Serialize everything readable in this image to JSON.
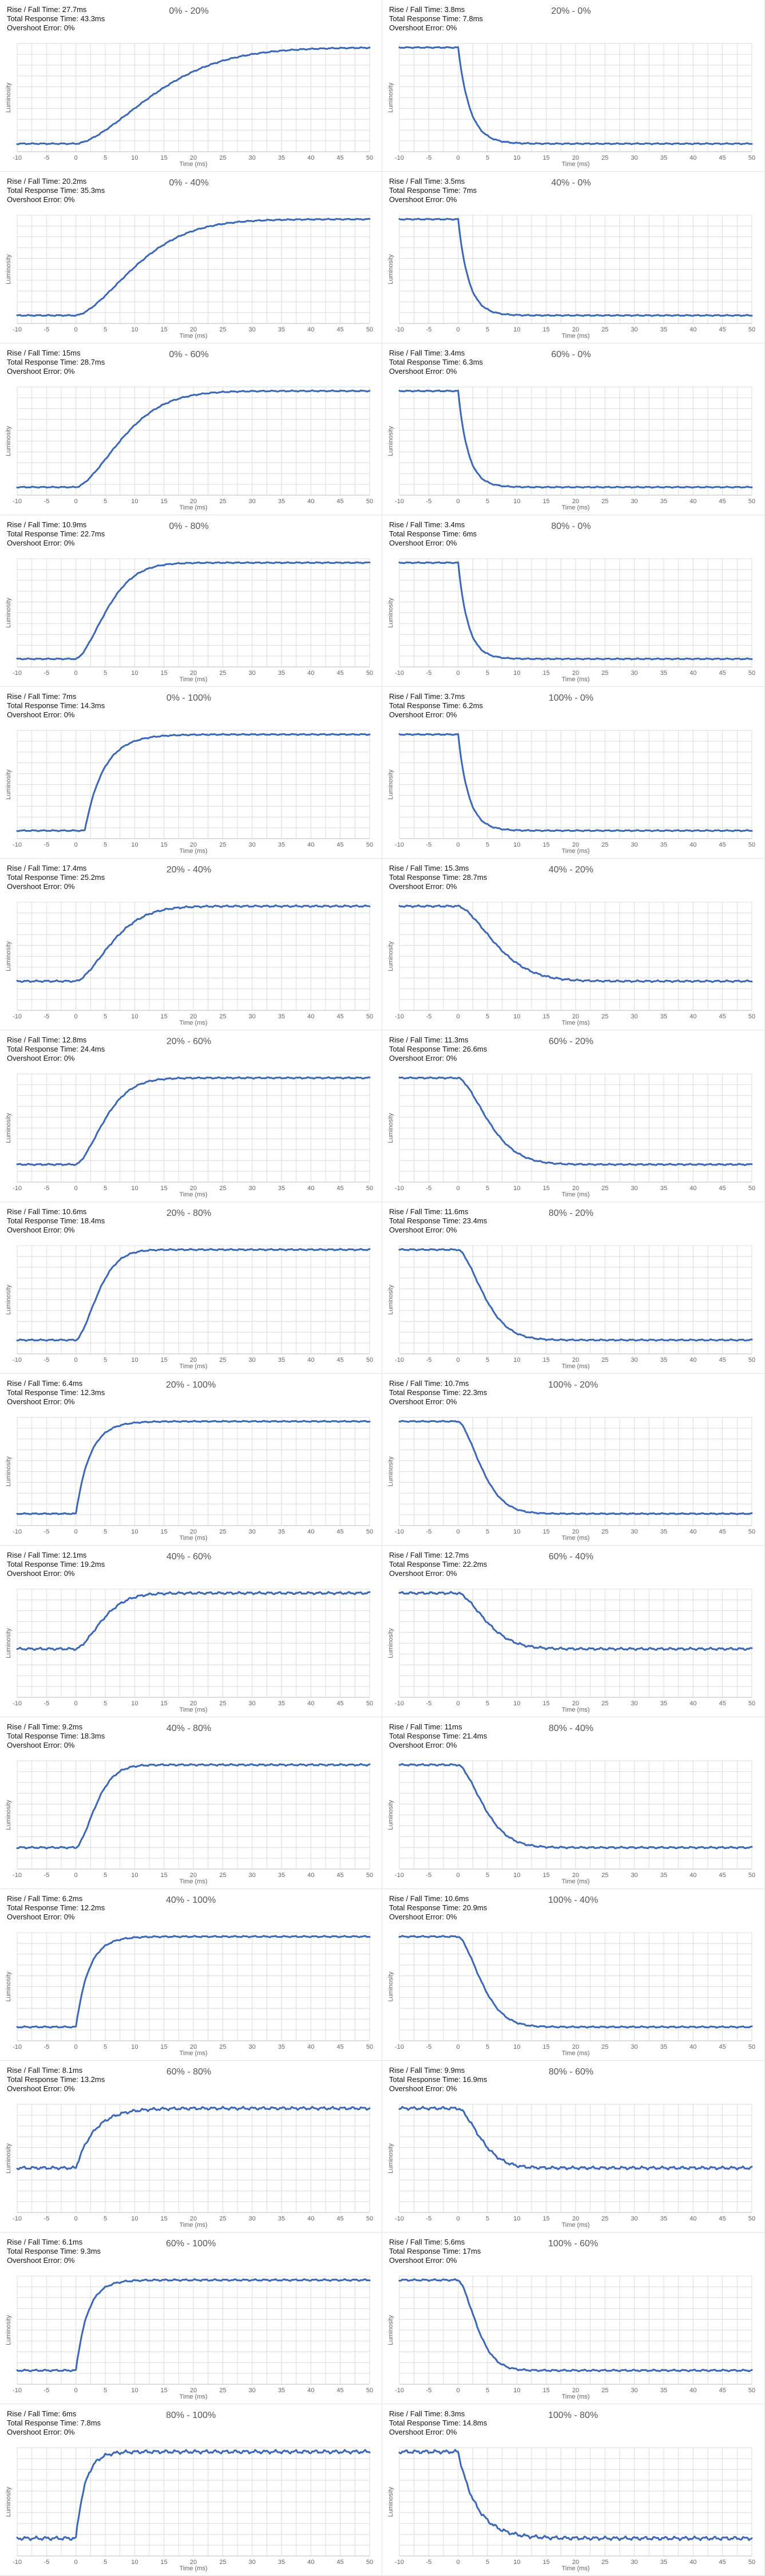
{
  "series_color": "#3a67b7",
  "chart_data": [
    {
      "type": "line",
      "title": "0% - 20%",
      "rise_fall": "Rise / Fall Time: 27.7ms",
      "total": "Total Response Time: 43.3ms",
      "overshoot": "Overshoot Error: 0%",
      "direction": "rise",
      "start": 0,
      "t0": 0,
      "tau": 16.3,
      "noise": 0.004,
      "xlabel": "Time (ms)",
      "ylabel": "Luminosity",
      "xlim": [
        -10,
        50
      ],
      "xticks": [
        -10,
        -5,
        0,
        5,
        10,
        15,
        20,
        25,
        30,
        35,
        40,
        45,
        50
      ],
      "ylim": [
        0,
        1
      ],
      "grid": true
    },
    {
      "type": "line",
      "title": "20% - 0%",
      "rise_fall": "Rise / Fall Time: 3.8ms",
      "total": "Total Response Time: 7.8ms",
      "overshoot": "Overshoot Error: 0%",
      "direction": "fall",
      "start": 0,
      "t0": 0,
      "tau": 2.0,
      "noise": 0.004,
      "xlabel": "Time (ms)",
      "ylabel": "Luminosity",
      "xlim": [
        -10,
        50
      ],
      "xticks": [
        -10,
        -5,
        0,
        5,
        10,
        15,
        20,
        25,
        30,
        35,
        40,
        45,
        50
      ],
      "ylim": [
        0,
        1
      ],
      "grid": true
    },
    {
      "type": "line",
      "title": "0% - 40%",
      "rise_fall": "Rise / Fall Time: 20.2ms",
      "total": "Total Response Time: 35.3ms",
      "overshoot": "Overshoot Error: 0%",
      "direction": "rise",
      "start": 0,
      "t0": 0,
      "tau": 12.5,
      "noise": 0.004,
      "xlabel": "Time (ms)",
      "ylabel": "Luminosity",
      "xlim": [
        -10,
        50
      ],
      "xticks": [
        -10,
        -5,
        0,
        5,
        10,
        15,
        20,
        25,
        30,
        35,
        40,
        45,
        50
      ],
      "ylim": [
        0,
        1
      ],
      "grid": true
    },
    {
      "type": "line",
      "title": "40% - 0%",
      "rise_fall": "Rise / Fall Time: 3.5ms",
      "total": "Total Response Time: 7ms",
      "overshoot": "Overshoot Error: 0%",
      "direction": "fall",
      "start": 0,
      "t0": 0,
      "tau": 1.8,
      "noise": 0.004,
      "xlabel": "Time (ms)",
      "ylabel": "Luminosity",
      "xlim": [
        -10,
        50
      ],
      "xticks": [
        -10,
        -5,
        0,
        5,
        10,
        15,
        20,
        25,
        30,
        35,
        40,
        45,
        50
      ],
      "ylim": [
        0,
        1
      ],
      "grid": true
    },
    {
      "type": "line",
      "title": "0% - 60%",
      "rise_fall": "Rise / Fall Time: 15ms",
      "total": "Total Response Time: 28.7ms",
      "overshoot": "Overshoot Error: 0%",
      "direction": "rise",
      "start": 0,
      "t0": 0,
      "tau": 9.8,
      "noise": 0.004,
      "xlabel": "Time (ms)",
      "ylabel": "Luminosity",
      "xlim": [
        -10,
        50
      ],
      "xticks": [
        -10,
        -5,
        0,
        5,
        10,
        15,
        20,
        25,
        30,
        35,
        40,
        45,
        50
      ],
      "ylim": [
        0,
        1
      ],
      "grid": true
    },
    {
      "type": "line",
      "title": "60% - 0%",
      "rise_fall": "Rise / Fall Time: 3.4ms",
      "total": "Total Response Time: 6.3ms",
      "overshoot": "Overshoot Error: 0%",
      "direction": "fall",
      "start": 0,
      "t0": 0,
      "tau": 1.7,
      "noise": 0.004,
      "xlabel": "Time (ms)",
      "ylabel": "Luminosity",
      "xlim": [
        -10,
        50
      ],
      "xticks": [
        -10,
        -5,
        0,
        5,
        10,
        15,
        20,
        25,
        30,
        35,
        40,
        45,
        50
      ],
      "ylim": [
        0,
        1
      ],
      "grid": true
    },
    {
      "type": "line",
      "title": "0% - 80%",
      "rise_fall": "Rise / Fall Time: 10.9ms",
      "total": "Total Response Time: 22.7ms",
      "overshoot": "Overshoot Error: 0%",
      "direction": "rise",
      "start": 0,
      "t0": 0,
      "tau": 6.5,
      "noise": 0.004,
      "xlabel": "Time (ms)",
      "ylabel": "Luminosity",
      "xlim": [
        -10,
        50
      ],
      "xticks": [
        -10,
        -5,
        0,
        5,
        10,
        15,
        20,
        25,
        30,
        35,
        40,
        45,
        50
      ],
      "ylim": [
        0,
        1
      ],
      "grid": true
    },
    {
      "type": "line",
      "title": "80% - 0%",
      "rise_fall": "Rise / Fall Time: 3.4ms",
      "total": "Total Response Time: 6ms",
      "overshoot": "Overshoot Error: 0%",
      "direction": "fall",
      "start": 0,
      "t0": 0,
      "tau": 1.7,
      "noise": 0.004,
      "xlabel": "Time (ms)",
      "ylabel": "Luminosity",
      "xlim": [
        -10,
        50
      ],
      "xticks": [
        -10,
        -5,
        0,
        5,
        10,
        15,
        20,
        25,
        30,
        35,
        40,
        45,
        50
      ],
      "ylim": [
        0,
        1
      ],
      "grid": true
    },
    {
      "type": "line",
      "title": "0% - 100%",
      "rise_fall": "Rise / Fall Time: 7ms",
      "total": "Total Response Time: 14.3ms",
      "overshoot": "Overshoot Error: 0%",
      "direction": "rise",
      "start": 0,
      "t0": 1.5,
      "tau": 3.2,
      "noise": 0.004,
      "xlabel": "Time (ms)",
      "ylabel": "Luminosity",
      "xlim": [
        -10,
        50
      ],
      "xticks": [
        -10,
        -5,
        0,
        5,
        10,
        15,
        20,
        25,
        30,
        35,
        40,
        45,
        50
      ],
      "ylim": [
        0,
        1
      ],
      "grid": true
    },
    {
      "type": "line",
      "title": "100% - 0%",
      "rise_fall": "Rise / Fall Time: 3.7ms",
      "total": "Total Response Time: 6.2ms",
      "overshoot": "Overshoot Error: 0%",
      "direction": "fall",
      "start": 0,
      "t0": 0,
      "tau": 1.8,
      "noise": 0.004,
      "xlabel": "Time (ms)",
      "ylabel": "Luminosity",
      "xlim": [
        -10,
        50
      ],
      "xticks": [
        -10,
        -5,
        0,
        5,
        10,
        15,
        20,
        25,
        30,
        35,
        40,
        45,
        50
      ],
      "ylim": [
        0,
        1
      ],
      "grid": true
    },
    {
      "type": "line",
      "title": "20% - 40%",
      "rise_fall": "Rise / Fall Time: 17.4ms",
      "total": "Total Response Time: 25.2ms",
      "overshoot": "Overshoot Error: 0%",
      "direction": "rise",
      "start": 0.22,
      "t0": 0,
      "tau": 7.5,
      "noise": 0.006,
      "xlabel": "Time (ms)",
      "ylabel": "Luminosity",
      "xlim": [
        -10,
        50
      ],
      "xticks": [
        -10,
        -5,
        0,
        5,
        10,
        15,
        20,
        25,
        30,
        35,
        40,
        45,
        50
      ],
      "ylim": [
        0,
        1
      ],
      "grid": true
    },
    {
      "type": "line",
      "title": "40% - 20%",
      "rise_fall": "Rise / Fall Time: 15.3ms",
      "total": "Total Response Time: 28.7ms",
      "overshoot": "Overshoot Error: 0%",
      "direction": "fall",
      "start": 0.22,
      "t0": 0,
      "tau": 8.0,
      "noise": 0.006,
      "xlabel": "Time (ms)",
      "ylabel": "Luminosity",
      "xlim": [
        -10,
        50
      ],
      "xticks": [
        -10,
        -5,
        0,
        5,
        10,
        15,
        20,
        25,
        30,
        35,
        40,
        45,
        50
      ],
      "ylim": [
        0,
        1
      ],
      "grid": true
    },
    {
      "type": "line",
      "title": "20% - 60%",
      "rise_fall": "Rise / Fall Time: 12.8ms",
      "total": "Total Response Time: 24.4ms",
      "overshoot": "Overshoot Error: 0%",
      "direction": "rise",
      "start": 0.1,
      "t0": 0,
      "tau": 6.0,
      "noise": 0.005,
      "xlabel": "Time (ms)",
      "ylabel": "Luminosity",
      "xlim": [
        -10,
        50
      ],
      "xticks": [
        -10,
        -5,
        0,
        5,
        10,
        15,
        20,
        25,
        30,
        35,
        40,
        45,
        50
      ],
      "ylim": [
        0,
        1
      ],
      "grid": true
    },
    {
      "type": "line",
      "title": "60% - 20%",
      "rise_fall": "Rise / Fall Time: 11.3ms",
      "total": "Total Response Time: 26.6ms",
      "overshoot": "Overshoot Error: 0%",
      "direction": "fall",
      "start": 0.1,
      "t0": 0,
      "tau": 6.5,
      "noise": 0.005,
      "xlabel": "Time (ms)",
      "ylabel": "Luminosity",
      "xlim": [
        -10,
        50
      ],
      "xticks": [
        -10,
        -5,
        0,
        5,
        10,
        15,
        20,
        25,
        30,
        35,
        40,
        45,
        50
      ],
      "ylim": [
        0,
        1
      ],
      "grid": true
    },
    {
      "type": "line",
      "title": "20% - 80%",
      "rise_fall": "Rise / Fall Time: 10.6ms",
      "total": "Total Response Time: 18.4ms",
      "overshoot": "Overshoot Error: 0%",
      "direction": "rise",
      "start": 0.06,
      "t0": 0,
      "tau": 4.6,
      "noise": 0.005,
      "xlabel": "Time (ms)",
      "ylabel": "Luminosity",
      "xlim": [
        -10,
        50
      ],
      "xticks": [
        -10,
        -5,
        0,
        5,
        10,
        15,
        20,
        25,
        30,
        35,
        40,
        45,
        50
      ],
      "ylim": [
        0,
        1
      ],
      "grid": true
    },
    {
      "type": "line",
      "title": "80% - 20%",
      "rise_fall": "Rise / Fall Time: 11.6ms",
      "total": "Total Response Time: 23.4ms",
      "overshoot": "Overshoot Error: 0%",
      "direction": "fall",
      "start": 0.06,
      "t0": 0,
      "tau": 5.5,
      "noise": 0.005,
      "xlabel": "Time (ms)",
      "ylabel": "Luminosity",
      "xlim": [
        -10,
        50
      ],
      "xticks": [
        -10,
        -5,
        0,
        5,
        10,
        15,
        20,
        25,
        30,
        35,
        40,
        45,
        50
      ],
      "ylim": [
        0,
        1
      ],
      "grid": true
    },
    {
      "type": "line",
      "title": "20% - 100%",
      "rise_fall": "Rise / Fall Time: 6.4ms",
      "total": "Total Response Time: 12.3ms",
      "overshoot": "Overshoot Error: 0%",
      "direction": "rise",
      "start": 0.04,
      "t0": 0,
      "tau": 2.4,
      "noise": 0.004,
      "xlabel": "Time (ms)",
      "ylabel": "Luminosity",
      "xlim": [
        -10,
        50
      ],
      "xticks": [
        -10,
        -5,
        0,
        5,
        10,
        15,
        20,
        25,
        30,
        35,
        40,
        45,
        50
      ],
      "ylim": [
        0,
        1
      ],
      "grid": true
    },
    {
      "type": "line",
      "title": "100% - 20%",
      "rise_fall": "Rise / Fall Time: 10.7ms",
      "total": "Total Response Time: 22.3ms",
      "overshoot": "Overshoot Error: 0%",
      "direction": "fall",
      "start": 0.04,
      "t0": 0,
      "tau": 5.0,
      "noise": 0.004,
      "xlabel": "Time (ms)",
      "ylabel": "Luminosity",
      "xlim": [
        -10,
        50
      ],
      "xticks": [
        -10,
        -5,
        0,
        5,
        10,
        15,
        20,
        25,
        30,
        35,
        40,
        45,
        50
      ],
      "ylim": [
        0,
        1
      ],
      "grid": true
    },
    {
      "type": "line",
      "title": "40% - 60%",
      "rise_fall": "Rise / Fall Time: 12.1ms",
      "total": "Total Response Time: 19.2ms",
      "overshoot": "Overshoot Error: 0%",
      "direction": "rise",
      "start": 0.42,
      "t0": 0,
      "tau": 5.5,
      "noise": 0.008,
      "xlabel": "Time (ms)",
      "ylabel": "Luminosity",
      "xlim": [
        -10,
        50
      ],
      "xticks": [
        -10,
        -5,
        0,
        5,
        10,
        15,
        20,
        25,
        30,
        35,
        40,
        45,
        50
      ],
      "ylim": [
        0,
        1
      ],
      "grid": true
    },
    {
      "type": "line",
      "title": "60% - 40%",
      "rise_fall": "Rise / Fall Time: 12.7ms",
      "total": "Total Response Time: 22.2ms",
      "overshoot": "Overshoot Error: 0%",
      "direction": "fall",
      "start": 0.42,
      "t0": 0,
      "tau": 6.0,
      "noise": 0.008,
      "xlabel": "Time (ms)",
      "ylabel": "Luminosity",
      "xlim": [
        -10,
        50
      ],
      "xticks": [
        -10,
        -5,
        0,
        5,
        10,
        15,
        20,
        25,
        30,
        35,
        40,
        45,
        50
      ],
      "ylim": [
        0,
        1
      ],
      "grid": true
    },
    {
      "type": "line",
      "title": "40% - 80%",
      "rise_fall": "Rise / Fall Time: 9.2ms",
      "total": "Total Response Time: 18.3ms",
      "overshoot": "Overshoot Error: 0%",
      "direction": "rise",
      "start": 0.14,
      "t0": 0,
      "tau": 4.2,
      "noise": 0.006,
      "xlabel": "Time (ms)",
      "ylabel": "Luminosity",
      "xlim": [
        -10,
        50
      ],
      "xticks": [
        -10,
        -5,
        0,
        5,
        10,
        15,
        20,
        25,
        30,
        35,
        40,
        45,
        50
      ],
      "ylim": [
        0,
        1
      ],
      "grid": true
    },
    {
      "type": "line",
      "title": "80% - 40%",
      "rise_fall": "Rise / Fall Time: 11ms",
      "total": "Total Response Time: 21.4ms",
      "overshoot": "Overshoot Error: 0%",
      "direction": "fall",
      "start": 0.14,
      "t0": 0,
      "tau": 5.5,
      "noise": 0.006,
      "xlabel": "Time (ms)",
      "ylabel": "Luminosity",
      "xlim": [
        -10,
        50
      ],
      "xticks": [
        -10,
        -5,
        0,
        5,
        10,
        15,
        20,
        25,
        30,
        35,
        40,
        45,
        50
      ],
      "ylim": [
        0,
        1
      ],
      "grid": true
    },
    {
      "type": "line",
      "title": "40% - 100%",
      "rise_fall": "Rise / Fall Time: 6.2ms",
      "total": "Total Response Time: 12.2ms",
      "overshoot": "Overshoot Error: 0%",
      "direction": "rise",
      "start": 0.06,
      "t0": 0,
      "tau": 2.2,
      "noise": 0.005,
      "xlabel": "Time (ms)",
      "ylabel": "Luminosity",
      "xlim": [
        -10,
        50
      ],
      "xticks": [
        -10,
        -5,
        0,
        5,
        10,
        15,
        20,
        25,
        30,
        35,
        40,
        45,
        50
      ],
      "ylim": [
        0,
        1
      ],
      "grid": true
    },
    {
      "type": "line",
      "title": "100% - 40%",
      "rise_fall": "Rise / Fall Time: 10.6ms",
      "total": "Total Response Time: 20.9ms",
      "overshoot": "Overshoot Error: 0%",
      "direction": "fall",
      "start": 0.06,
      "t0": 0,
      "tau": 5.0,
      "noise": 0.005,
      "xlabel": "Time (ms)",
      "ylabel": "Luminosity",
      "xlim": [
        -10,
        50
      ],
      "xticks": [
        -10,
        -5,
        0,
        5,
        10,
        15,
        20,
        25,
        30,
        35,
        40,
        45,
        50
      ],
      "ylim": [
        0,
        1
      ],
      "grid": true
    },
    {
      "type": "line",
      "title": "60% - 80%",
      "rise_fall": "Rise / Fall Time: 8.1ms",
      "total": "Total Response Time: 13.2ms",
      "overshoot": "Overshoot Error: 0%",
      "direction": "rise",
      "start": 0.38,
      "t0": 0,
      "tau": 3.2,
      "noise": 0.01,
      "xlabel": "Time (ms)",
      "ylabel": "Luminosity",
      "xlim": [
        -10,
        50
      ],
      "xticks": [
        -10,
        -5,
        0,
        5,
        10,
        15,
        20,
        25,
        30,
        35,
        40,
        45,
        50
      ],
      "ylim": [
        0,
        1
      ],
      "grid": true
    },
    {
      "type": "line",
      "title": "80% - 60%",
      "rise_fall": "Rise / Fall Time: 9.9ms",
      "total": "Total Response Time: 16.9ms",
      "overshoot": "Overshoot Error: 0%",
      "direction": "fall",
      "start": 0.38,
      "t0": 0,
      "tau": 4.8,
      "noise": 0.01,
      "xlabel": "Time (ms)",
      "ylabel": "Luminosity",
      "xlim": [
        -10,
        50
      ],
      "xticks": [
        -10,
        -5,
        0,
        5,
        10,
        15,
        20,
        25,
        30,
        35,
        40,
        45,
        50
      ],
      "ylim": [
        0,
        1
      ],
      "grid": true
    },
    {
      "type": "line",
      "title": "60% - 100%",
      "rise_fall": "Rise / Fall Time: 6.1ms",
      "total": "Total Response Time: 9.3ms",
      "overshoot": "Overshoot Error: 0%",
      "direction": "rise",
      "start": 0.06,
      "t0": 0,
      "tau": 2.0,
      "noise": 0.006,
      "xlabel": "Time (ms)",
      "ylabel": "Luminosity",
      "xlim": [
        -10,
        50
      ],
      "xticks": [
        -10,
        -5,
        0,
        5,
        10,
        15,
        20,
        25,
        30,
        35,
        40,
        45,
        50
      ],
      "ylim": [
        0,
        1
      ],
      "grid": true
    },
    {
      "type": "line",
      "title": "100% - 60%",
      "rise_fall": "Rise / Fall Time: 5.6ms",
      "total": "Total Response Time: 17ms",
      "overshoot": "Overshoot Error: 0%",
      "direction": "fall",
      "start": 0.06,
      "t0": 0,
      "tau": 4.0,
      "noise": 0.006,
      "xlabel": "Time (ms)",
      "ylabel": "Luminosity",
      "xlim": [
        -10,
        50
      ],
      "xticks": [
        -10,
        -5,
        0,
        5,
        10,
        15,
        20,
        25,
        30,
        35,
        40,
        45,
        50
      ],
      "ylim": [
        0,
        1
      ],
      "grid": true
    },
    {
      "type": "line",
      "title": "80% - 100%",
      "rise_fall": "Rise / Fall Time: 6ms",
      "total": "Total Response Time: 7.8ms",
      "overshoot": "Overshoot Error: 0%",
      "direction": "rise",
      "start": 0.1,
      "t0": 0,
      "tau": 1.6,
      "noise": 0.012,
      "xlabel": "Time (ms)",
      "ylabel": "Luminosity",
      "xlim": [
        -10,
        50
      ],
      "xticks": [
        -10,
        -5,
        0,
        5,
        10,
        15,
        20,
        25,
        30,
        35,
        40,
        45,
        50
      ],
      "ylim": [
        0,
        1
      ],
      "grid": true
    },
    {
      "type": "line",
      "title": "100% - 80%",
      "rise_fall": "Rise / Fall Time: 8.3ms",
      "total": "Total Response Time: 14.8ms",
      "overshoot": "Overshoot Error: 0%",
      "direction": "fall",
      "start": 0.1,
      "t0": 0,
      "tau": 3.2,
      "noise": 0.012,
      "xlabel": "Time (ms)",
      "ylabel": "Luminosity",
      "xlim": [
        -10,
        50
      ],
      "xticks": [
        -10,
        -5,
        0,
        5,
        10,
        15,
        20,
        25,
        30,
        35,
        40,
        45,
        50
      ],
      "ylim": [
        0,
        1
      ],
      "grid": true
    }
  ]
}
